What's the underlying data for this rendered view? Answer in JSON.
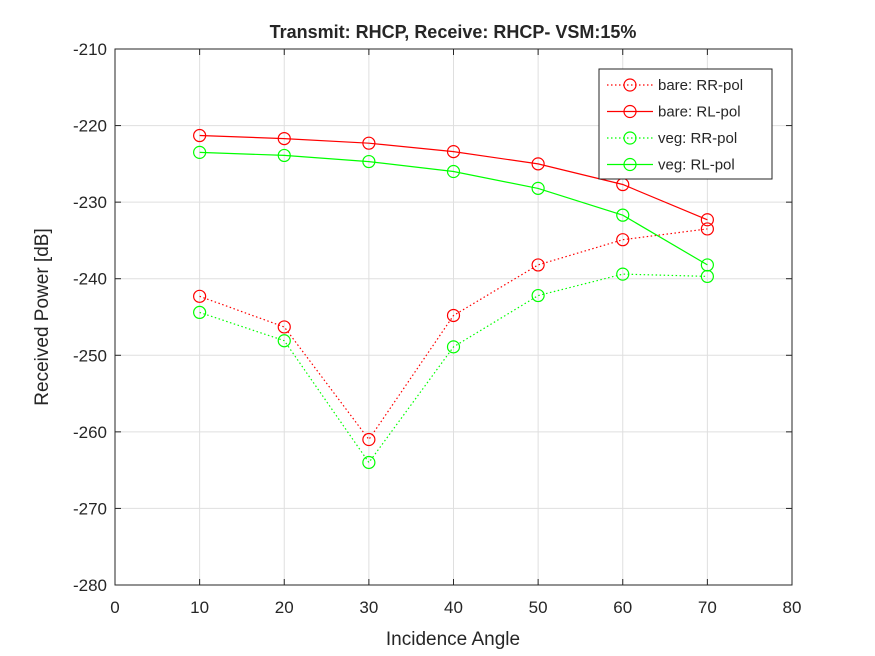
{
  "chart_data": {
    "type": "line",
    "title": "Transmit: RHCP, Receive: RHCP- VSM:15%",
    "xlabel": "Incidence Angle",
    "ylabel": "Received Power [dB]",
    "xlim": [
      0,
      80
    ],
    "ylim": [
      -280,
      -210
    ],
    "xticks": [
      0,
      10,
      20,
      30,
      40,
      50,
      60,
      70,
      80
    ],
    "yticks": [
      -280,
      -270,
      -260,
      -250,
      -240,
      -230,
      -220,
      -210
    ],
    "grid": true,
    "legend_position": "top-right",
    "x": [
      10,
      20,
      30,
      40,
      50,
      60,
      70
    ],
    "series": [
      {
        "name": "bare: RR-pol",
        "values": [
          -242.3,
          -246.3,
          -261.0,
          -244.8,
          -238.2,
          -234.9,
          -233.5
        ],
        "color": "#ff0000",
        "line_style": "dotted",
        "marker": "circle"
      },
      {
        "name": "bare: RL-pol",
        "values": [
          -221.3,
          -221.7,
          -222.3,
          -223.4,
          -225.0,
          -227.7,
          -232.3
        ],
        "color": "#ff0000",
        "line_style": "solid",
        "marker": "circle"
      },
      {
        "name": "veg: RR-pol",
        "values": [
          -244.4,
          -248.1,
          -264.0,
          -248.9,
          -242.2,
          -239.4,
          -239.7
        ],
        "color": "#00ff00",
        "line_style": "dotted",
        "marker": "circle"
      },
      {
        "name": "veg: RL-pol",
        "values": [
          -223.5,
          -223.9,
          -224.7,
          -226.0,
          -228.2,
          -231.7,
          -238.2
        ],
        "color": "#00ff00",
        "line_style": "solid",
        "marker": "circle"
      }
    ]
  }
}
